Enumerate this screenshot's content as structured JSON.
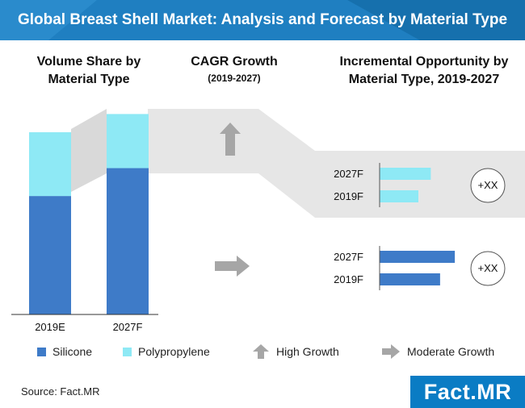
{
  "header": {
    "title": "Global Breast Shell Market: Analysis and Forecast by Material Type"
  },
  "headings": {
    "volume_share": "Volume Share by Material Type",
    "cagr": "CAGR Growth",
    "cagr_period": "(2019-2027)",
    "incremental": "Incremental Opportunity by Material Type, 2019-2027"
  },
  "colors": {
    "silicone": "#3e7bc8",
    "polypropylene": "#8ee9f5",
    "banner": "#1f7fc1",
    "band": "#e6e6e6",
    "arrow": "#a6a6a6"
  },
  "legend": {
    "silicone": "Silicone",
    "polypropylene": "Polypropylene",
    "high_growth": "High Growth",
    "moderate_growth": "Moderate Growth",
    "high_growth_icon": "up-arrow-icon",
    "moderate_growth_icon": "right-arrow-icon"
  },
  "chart_data": [
    {
      "type": "bar",
      "stacked": true,
      "categories": [
        "2019E",
        "2027F"
      ],
      "series": [
        {
          "name": "Silicone",
          "values": [
            65,
            73
          ]
        },
        {
          "name": "Polypropylene",
          "values": [
            35,
            27
          ]
        }
      ],
      "ylim": [
        0,
        100
      ],
      "total_heights": [
        100,
        110
      ]
    },
    {
      "type": "bar",
      "orientation": "horizontal",
      "segment": "Polypropylene",
      "growth": "High Growth",
      "categories": [
        "2027F",
        "2019F"
      ],
      "values": [
        66,
        50
      ],
      "xlim": [
        0,
        100
      ],
      "badge": "+XX"
    },
    {
      "type": "bar",
      "orientation": "horizontal",
      "segment": "Silicone",
      "growth": "Moderate Growth",
      "categories": [
        "2027F",
        "2019F"
      ],
      "values": [
        97,
        78
      ],
      "xlim": [
        0,
        100
      ],
      "badge": "+XX"
    }
  ],
  "source": "Source: Fact.MR",
  "logo": {
    "text": "Fact.MR"
  }
}
